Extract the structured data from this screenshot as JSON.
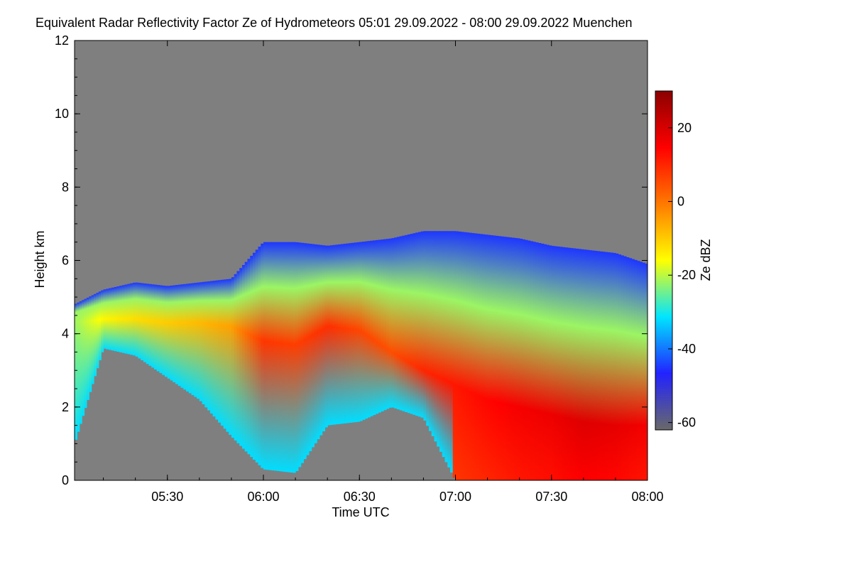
{
  "chart_data": {
    "type": "heatmap",
    "title": "Equivalent Radar Reflectivity Factor Ze of Hydrometeors   05:01 29.09.2022 - 08:00 29.09.2022 Muenchen",
    "xlabel": "Time UTC",
    "ylabel": "Height km",
    "x_range": [
      "05:01",
      "08:00"
    ],
    "x_ticks": [
      "05:30",
      "06:00",
      "06:30",
      "07:00",
      "07:30",
      "08:00"
    ],
    "ylim": [
      0,
      12
    ],
    "y_ticks": [
      0,
      2,
      4,
      6,
      8,
      10,
      12
    ],
    "background_color": "#7f7f7f",
    "colorbar": {
      "label": "Ze dBZ",
      "range": [
        -62,
        30
      ],
      "ticks": [
        20,
        0,
        -20,
        -40,
        -60
      ],
      "colors": [
        "#696969",
        "#2222ff",
        "#00e5ff",
        "#ffff00",
        "#ff7a00",
        "#ff0000",
        "#8b0000"
      ]
    },
    "echo_profile": {
      "time": [
        "05:01",
        "05:10",
        "05:20",
        "05:30",
        "05:40",
        "05:50",
        "06:00",
        "06:10",
        "06:20",
        "06:30",
        "06:40",
        "06:50",
        "07:00",
        "07:10",
        "07:20",
        "07:30",
        "07:40",
        "07:50",
        "08:00"
      ],
      "top_km": [
        4.8,
        5.2,
        5.4,
        5.3,
        5.4,
        5.5,
        6.5,
        6.5,
        6.4,
        6.5,
        6.6,
        6.8,
        6.8,
        6.7,
        6.6,
        6.4,
        6.3,
        6.2,
        5.9
      ],
      "base_km": [
        1.0,
        3.6,
        3.4,
        2.8,
        2.2,
        1.2,
        0.3,
        0.2,
        1.5,
        1.6,
        2.0,
        1.7,
        0.0,
        0.0,
        0.0,
        0.0,
        0.0,
        0.0,
        0.0
      ],
      "peak_dbz": [
        -22,
        -15,
        -12,
        -10,
        -8,
        -5,
        8,
        7,
        9,
        6,
        5,
        10,
        12,
        14,
        16,
        17,
        19,
        18,
        16
      ],
      "peak_height_km": [
        4.3,
        4.4,
        4.4,
        4.3,
        4.3,
        4.2,
        3.8,
        3.7,
        4.2,
        4.1,
        3.5,
        3.0,
        2.6,
        2.2,
        2.0,
        1.8,
        1.6,
        1.5,
        1.5
      ]
    }
  }
}
